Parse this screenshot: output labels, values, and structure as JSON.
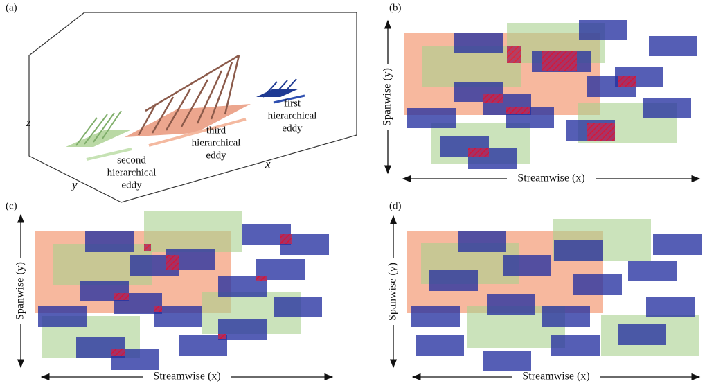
{
  "panels": [
    {
      "label": "(a)",
      "axes": {
        "z": "z",
        "y": "y",
        "x": "x"
      },
      "eddies": [
        {
          "lines": [
            "second",
            "hierarchical",
            "eddy"
          ]
        },
        {
          "lines": [
            "third",
            "hierarchical",
            "eddy"
          ]
        },
        {
          "lines": [
            "first",
            "hierarchical",
            "eddy"
          ]
        }
      ]
    },
    {
      "label": "(b)",
      "y_axis": "Spanwise (y)",
      "x_axis": "Streamwise (x)"
    },
    {
      "label": "(c)",
      "y_axis": "Spanwise (y)",
      "x_axis": "Streamwise (x)"
    },
    {
      "label": "(d)",
      "y_axis": "Spanwise (y)",
      "x_axis": "Streamwise (x)"
    }
  ]
}
